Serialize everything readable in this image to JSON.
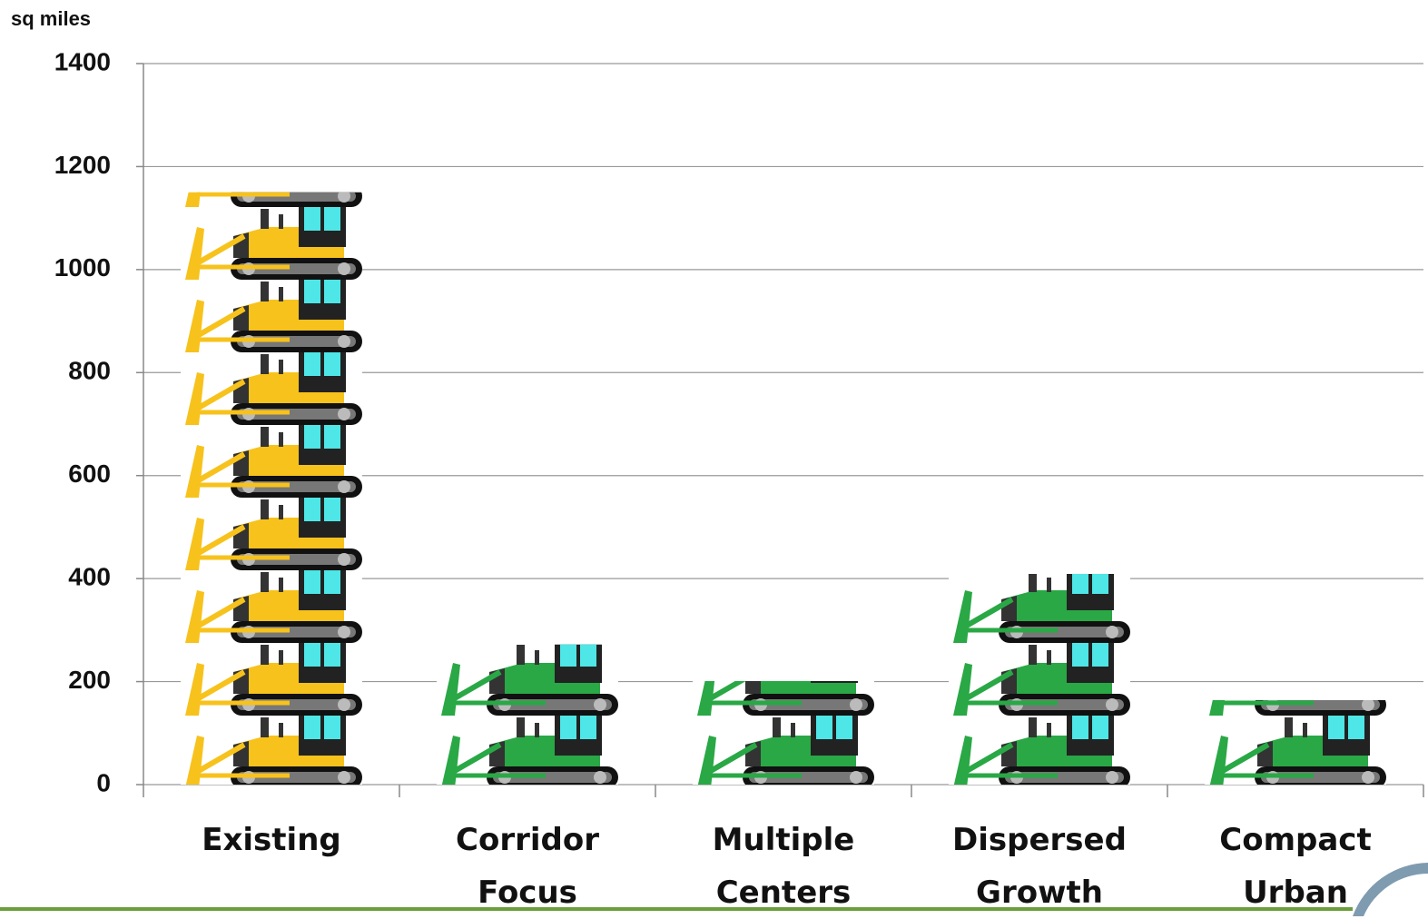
{
  "chart_data": {
    "type": "bar",
    "style": "pictograph",
    "y_unit_label": "sq miles",
    "categories": [
      "Existing",
      "Corridor Focus",
      "Multiple Centers",
      "Dispersed Growth",
      "Compact Urban"
    ],
    "values": [
      1150,
      272,
      201,
      409,
      164
    ],
    "colors": [
      "#f7c21b",
      "#29a845",
      "#29a845",
      "#29a845",
      "#29a845"
    ],
    "ylim": [
      0,
      1400
    ],
    "yticks": [
      0,
      200,
      400,
      600,
      800,
      1000,
      1200,
      1400
    ],
    "grid": true
  }
}
